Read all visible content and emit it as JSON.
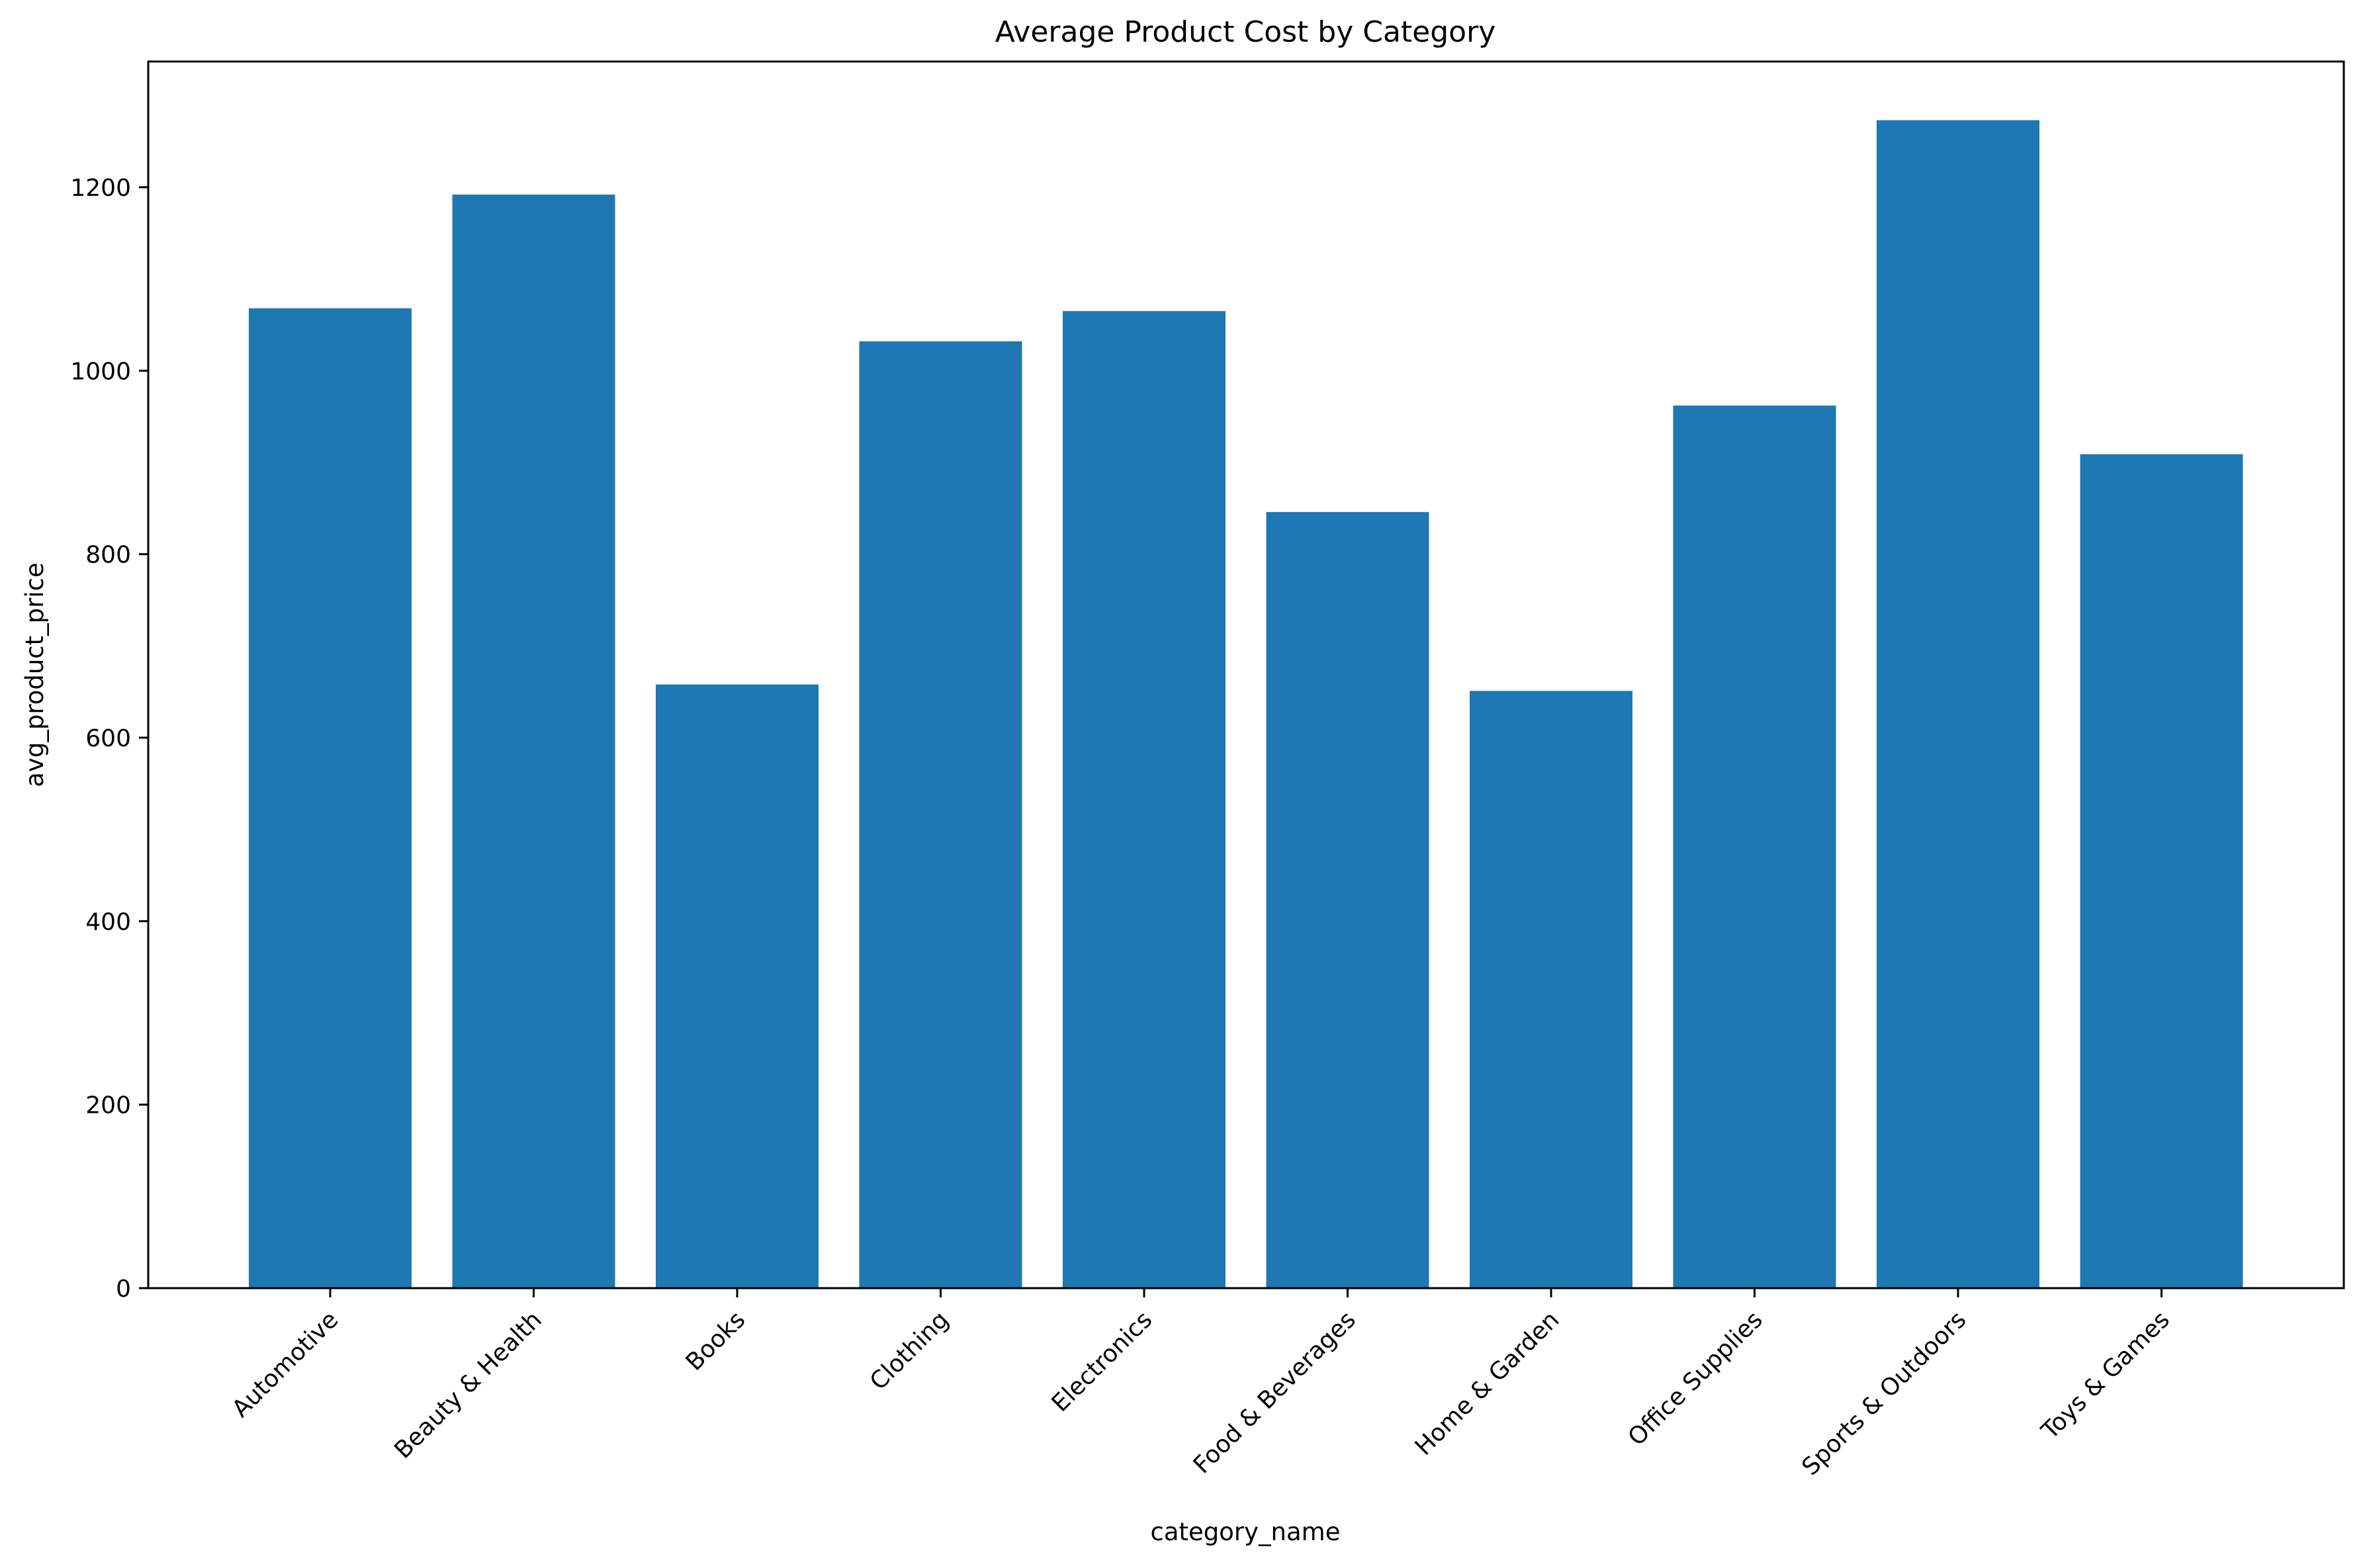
{
  "chart_data": {
    "type": "bar",
    "title": "Average Product Cost by Category",
    "xlabel": "category_name",
    "ylabel": "avg_product_price",
    "categories": [
      "Automotive",
      "Beauty & Health",
      "Books",
      "Clothing",
      "Electronics",
      "Food & Beverages",
      "Home & Garden",
      "Office Supplies",
      "Sports & Outdoors",
      "Toys & Games"
    ],
    "values": [
      1068,
      1192,
      658,
      1032,
      1065,
      846,
      651,
      962,
      1273,
      909
    ],
    "ylim": [
      0,
      1337
    ],
    "yticks": [
      0,
      200,
      400,
      600,
      800,
      1000,
      1200
    ],
    "bar_color": "#1f77b4",
    "grid": false,
    "legend": "none"
  }
}
